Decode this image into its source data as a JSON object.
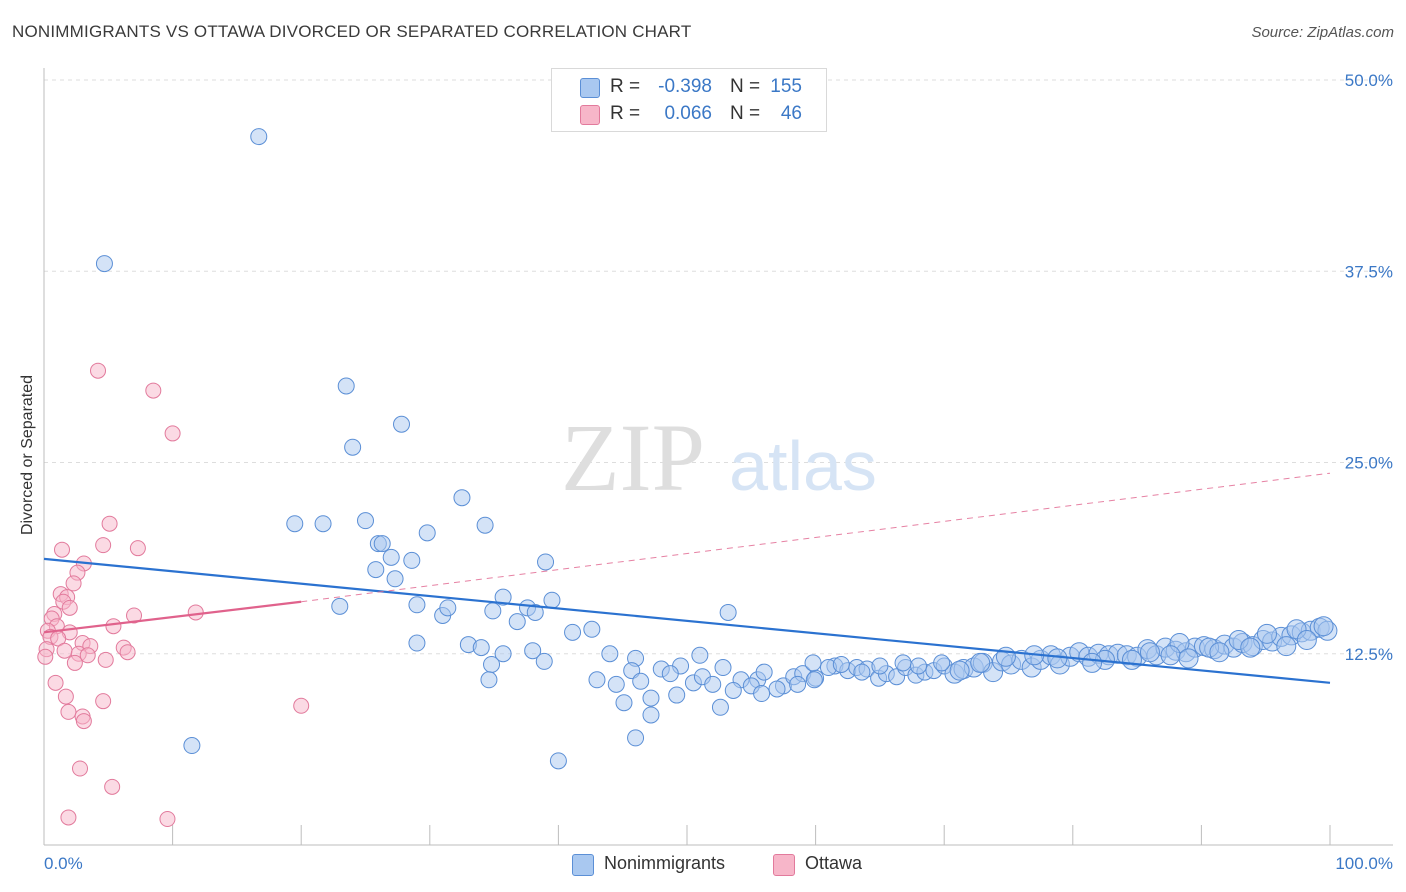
{
  "header": {
    "title": "NONIMMIGRANTS VS OTTAWA DIVORCED OR SEPARATED CORRELATION CHART",
    "source": "Source: ZipAtlas.com"
  },
  "watermark": {
    "zip": "ZIP",
    "atlas": "atlas"
  },
  "legend": {
    "rows": [
      {
        "r_label": "R =",
        "r_value": "-0.398",
        "n_label": "N =",
        "n_value": "155",
        "color": "#a9c8f0"
      },
      {
        "r_label": "R =",
        "r_value": "0.066",
        "n_label": "N =",
        "n_value": "46",
        "color": "#f7b6c9"
      }
    ]
  },
  "bottom_legend": {
    "item1": "Nonimmigrants",
    "item2": "Ottawa"
  },
  "colors": {
    "blue_fill": "#a9c8f0",
    "blue_stroke": "#5b8fd6",
    "blue_line": "#2b72d0",
    "pink_fill": "#f7b6c9",
    "pink_stroke": "#e27a9c",
    "pink_line": "#e0628c",
    "axis_text": "#3b78c6",
    "grid": "#dddddd"
  },
  "chart_data": {
    "type": "scatter",
    "title": "NONIMMIGRANTS VS OTTAWA DIVORCED OR SEPARATED CORRELATION CHART",
    "xlabel": "",
    "ylabel": "Divorced or Separated",
    "xlim": [
      0,
      100
    ],
    "ylim": [
      0,
      50
    ],
    "x_tick_labels": [
      "0.0%",
      "100.0%"
    ],
    "y_ticks": [
      12.5,
      25.0,
      37.5,
      50.0
    ],
    "y_tick_labels": [
      "12.5%",
      "25.0%",
      "37.5%",
      "50.0%"
    ],
    "grid": true,
    "legend_position": "top-center",
    "series": [
      {
        "name": "Nonimmigrants",
        "r": -0.398,
        "n": 155,
        "trend": {
          "x": [
            0,
            100
          ],
          "y": [
            18.7,
            10.6
          ]
        },
        "points": [
          [
            16.7,
            46.3
          ],
          [
            4.7,
            38.0
          ],
          [
            23.5,
            30.0
          ],
          [
            27.8,
            27.5
          ],
          [
            24.0,
            26.0
          ],
          [
            32.5,
            22.7
          ],
          [
            19.5,
            21.0
          ],
          [
            21.7,
            21.0
          ],
          [
            25.0,
            21.2
          ],
          [
            29.8,
            20.4
          ],
          [
            26.0,
            19.7
          ],
          [
            26.3,
            19.7
          ],
          [
            34.3,
            20.9
          ],
          [
            27.0,
            18.8
          ],
          [
            28.6,
            18.6
          ],
          [
            39.0,
            18.5
          ],
          [
            25.8,
            18.0
          ],
          [
            27.3,
            17.4
          ],
          [
            23.0,
            15.6
          ],
          [
            29.0,
            15.7
          ],
          [
            31.0,
            15.0
          ],
          [
            31.4,
            15.5
          ],
          [
            37.6,
            15.5
          ],
          [
            34.9,
            15.3
          ],
          [
            35.7,
            16.2
          ],
          [
            38.2,
            15.2
          ],
          [
            39.5,
            16.0
          ],
          [
            36.8,
            14.6
          ],
          [
            42.6,
            14.1
          ],
          [
            53.2,
            15.2
          ],
          [
            41.1,
            13.9
          ],
          [
            29.0,
            13.2
          ],
          [
            33.0,
            13.1
          ],
          [
            34.0,
            12.9
          ],
          [
            35.7,
            12.5
          ],
          [
            38.0,
            12.7
          ],
          [
            34.8,
            11.8
          ],
          [
            38.9,
            12.0
          ],
          [
            44.0,
            12.5
          ],
          [
            46.0,
            12.2
          ],
          [
            34.6,
            10.8
          ],
          [
            45.7,
            11.4
          ],
          [
            48.0,
            11.5
          ],
          [
            49.5,
            11.7
          ],
          [
            50.5,
            10.6
          ],
          [
            51.2,
            11.0
          ],
          [
            51.0,
            12.4
          ],
          [
            52.0,
            10.5
          ],
          [
            54.2,
            10.8
          ],
          [
            55.5,
            10.8
          ],
          [
            56.0,
            11.3
          ],
          [
            57.5,
            10.4
          ],
          [
            58.3,
            11.0
          ],
          [
            59.0,
            11.2
          ],
          [
            60.0,
            10.9
          ],
          [
            61.5,
            11.7
          ],
          [
            62.5,
            11.4
          ],
          [
            63.2,
            11.6
          ],
          [
            64.0,
            11.5
          ],
          [
            64.9,
            10.9
          ],
          [
            65.5,
            11.2
          ],
          [
            66.3,
            11.0
          ],
          [
            67.0,
            11.6
          ],
          [
            67.8,
            11.1
          ],
          [
            68.5,
            11.3
          ],
          [
            69.2,
            11.4
          ],
          [
            70.0,
            11.7
          ],
          [
            70.8,
            11.2
          ],
          [
            71.5,
            11.5
          ],
          [
            72.3,
            11.6
          ],
          [
            73.0,
            11.9
          ],
          [
            73.8,
            11.3
          ],
          [
            74.5,
            12.0
          ],
          [
            75.2,
            11.8
          ],
          [
            76.0,
            12.1
          ],
          [
            76.8,
            11.6
          ],
          [
            77.5,
            12.1
          ],
          [
            78.3,
            12.4
          ],
          [
            79.0,
            11.8
          ],
          [
            79.8,
            12.3
          ],
          [
            80.5,
            12.6
          ],
          [
            81.2,
            12.3
          ],
          [
            82.0,
            12.5
          ],
          [
            82.8,
            12.4
          ],
          [
            83.5,
            12.5
          ],
          [
            84.2,
            12.4
          ],
          [
            85.0,
            12.3
          ],
          [
            85.8,
            12.8
          ],
          [
            86.5,
            12.4
          ],
          [
            87.2,
            12.9
          ],
          [
            88.0,
            12.7
          ],
          [
            88.8,
            12.6
          ],
          [
            89.5,
            12.9
          ],
          [
            90.2,
            13.0
          ],
          [
            91.0,
            12.8
          ],
          [
            91.8,
            13.1
          ],
          [
            92.5,
            12.9
          ],
          [
            93.2,
            13.2
          ],
          [
            94.0,
            13.0
          ],
          [
            94.8,
            13.4
          ],
          [
            95.5,
            13.3
          ],
          [
            96.2,
            13.6
          ],
          [
            97.0,
            13.7
          ],
          [
            97.8,
            13.9
          ],
          [
            98.5,
            14.0
          ],
          [
            99.2,
            14.2
          ],
          [
            99.8,
            14.0
          ],
          [
            82.5,
            12.1
          ],
          [
            86.0,
            12.6
          ],
          [
            88.3,
            13.2
          ],
          [
            90.6,
            12.9
          ],
          [
            92.9,
            13.4
          ],
          [
            95.1,
            13.8
          ],
          [
            97.4,
            14.1
          ],
          [
            99.5,
            14.3
          ],
          [
            43.0,
            10.8
          ],
          [
            44.5,
            10.5
          ],
          [
            45.1,
            9.3
          ],
          [
            46.4,
            10.7
          ],
          [
            47.2,
            9.6
          ],
          [
            48.7,
            11.2
          ],
          [
            49.2,
            9.8
          ],
          [
            52.8,
            11.6
          ],
          [
            53.6,
            10.1
          ],
          [
            55.0,
            10.4
          ],
          [
            55.8,
            9.9
          ],
          [
            57.0,
            10.2
          ],
          [
            58.6,
            10.5
          ],
          [
            59.8,
            11.9
          ],
          [
            61.0,
            11.6
          ],
          [
            62.0,
            11.8
          ],
          [
            63.6,
            11.3
          ],
          [
            65.0,
            11.7
          ],
          [
            66.8,
            11.9
          ],
          [
            68.0,
            11.7
          ],
          [
            69.8,
            11.9
          ],
          [
            71.2,
            11.4
          ],
          [
            72.8,
            11.9
          ],
          [
            74.8,
            12.3
          ],
          [
            77.0,
            12.4
          ],
          [
            78.8,
            12.2
          ],
          [
            81.5,
            11.9
          ],
          [
            84.6,
            12.1
          ],
          [
            87.6,
            12.4
          ],
          [
            89.0,
            12.2
          ],
          [
            91.4,
            12.6
          ],
          [
            93.8,
            12.9
          ],
          [
            96.6,
            13.0
          ],
          [
            98.2,
            13.4
          ],
          [
            11.5,
            6.5
          ],
          [
            40.0,
            5.5
          ],
          [
            46.0,
            7.0
          ],
          [
            47.2,
            8.5
          ],
          [
            52.6,
            9.0
          ],
          [
            59.9,
            10.8
          ]
        ]
      },
      {
        "name": "Ottawa",
        "r": 0.066,
        "n": 46,
        "trend": {
          "x": [
            0,
            20
          ],
          "y": [
            13.9,
            15.9
          ]
        },
        "trend_extended": {
          "x": [
            20,
            100
          ],
          "y": [
            15.9,
            24.3
          ]
        },
        "points": [
          [
            4.2,
            31.0
          ],
          [
            8.5,
            29.7
          ],
          [
            10.0,
            26.9
          ],
          [
            5.1,
            21.0
          ],
          [
            1.4,
            19.3
          ],
          [
            4.6,
            19.6
          ],
          [
            7.3,
            19.4
          ],
          [
            3.1,
            18.4
          ],
          [
            2.6,
            17.8
          ],
          [
            2.3,
            17.1
          ],
          [
            1.3,
            16.4
          ],
          [
            1.8,
            16.2
          ],
          [
            1.5,
            15.9
          ],
          [
            2.0,
            15.5
          ],
          [
            0.8,
            15.1
          ],
          [
            0.6,
            14.8
          ],
          [
            7.0,
            15.0
          ],
          [
            11.8,
            15.2
          ],
          [
            1.0,
            14.3
          ],
          [
            5.4,
            14.3
          ],
          [
            0.3,
            14.0
          ],
          [
            2.0,
            13.9
          ],
          [
            0.5,
            13.6
          ],
          [
            1.1,
            13.5
          ],
          [
            3.0,
            13.2
          ],
          [
            3.6,
            13.0
          ],
          [
            6.2,
            12.9
          ],
          [
            0.2,
            12.8
          ],
          [
            1.6,
            12.7
          ],
          [
            2.7,
            12.5
          ],
          [
            3.4,
            12.4
          ],
          [
            6.5,
            12.6
          ],
          [
            0.1,
            12.3
          ],
          [
            4.8,
            12.1
          ],
          [
            2.4,
            11.9
          ],
          [
            0.9,
            10.6
          ],
          [
            1.7,
            9.7
          ],
          [
            4.6,
            9.4
          ],
          [
            1.9,
            8.7
          ],
          [
            3.0,
            8.4
          ],
          [
            3.1,
            8.1
          ],
          [
            20.0,
            9.1
          ],
          [
            2.8,
            5.0
          ],
          [
            5.3,
            3.8
          ],
          [
            1.9,
            1.8
          ],
          [
            9.6,
            1.7
          ]
        ]
      }
    ]
  }
}
